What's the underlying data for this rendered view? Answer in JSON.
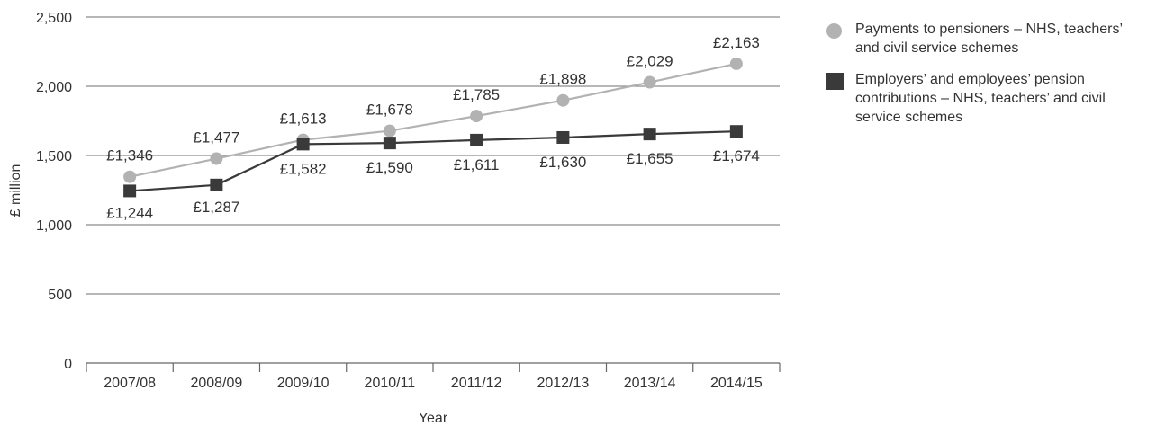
{
  "chart_data": {
    "type": "line",
    "categories": [
      "2007/08",
      "2008/09",
      "2009/10",
      "2010/11",
      "2011/12",
      "2012/13",
      "2013/14",
      "2014/15"
    ],
    "series": [
      {
        "name": "Payments to pensioners – NHS, teachers’ and civil service schemes",
        "marker": "circle",
        "color": "#b2b2b2",
        "values": [
          1346,
          1477,
          1613,
          1678,
          1785,
          1898,
          2029,
          2163
        ],
        "labels": [
          "£1,346",
          "£1,477",
          "£1,613",
          "£1,678",
          "£1,785",
          "£1,898",
          "£2,029",
          "£2,163"
        ]
      },
      {
        "name": "Employers’ and employees’ pension contributions – NHS, teachers’ and civil service schemes",
        "marker": "square",
        "color": "#3a3a3a",
        "values": [
          1244,
          1287,
          1582,
          1590,
          1611,
          1630,
          1655,
          1674
        ],
        "labels": [
          "£1,244",
          "£1,287",
          "£1,582",
          "£1,590",
          "£1,611",
          "£1,630",
          "£1,655",
          "£1,674"
        ]
      }
    ],
    "yticks": [
      0,
      500,
      1000,
      1500,
      2000,
      2500
    ],
    "ytick_labels": [
      "0",
      "500",
      "1,000",
      "1,500",
      "2,000",
      "2,500"
    ],
    "ylim": [
      0,
      2500
    ],
    "xlabel": "Year",
    "ylabel": "£ million",
    "grid": true,
    "legend_position": "right"
  }
}
